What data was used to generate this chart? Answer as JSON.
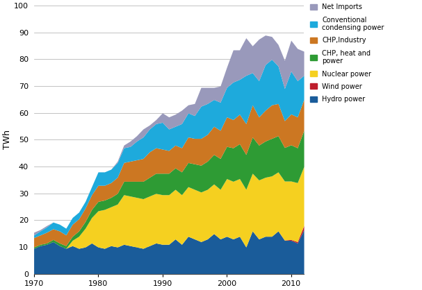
{
  "ylabel": "TWh",
  "xlim": [
    1970,
    2012
  ],
  "ylim": [
    0,
    100
  ],
  "yticks": [
    0,
    10,
    20,
    30,
    40,
    50,
    60,
    70,
    80,
    90,
    100
  ],
  "xticks": [
    1970,
    1980,
    1990,
    2000,
    2010
  ],
  "years": [
    1970,
    1971,
    1972,
    1973,
    1974,
    1975,
    1976,
    1977,
    1978,
    1979,
    1980,
    1981,
    1982,
    1983,
    1984,
    1985,
    1986,
    1987,
    1988,
    1989,
    1990,
    1991,
    1992,
    1993,
    1994,
    1995,
    1996,
    1997,
    1998,
    1999,
    2000,
    2001,
    2002,
    2003,
    2004,
    2005,
    2006,
    2007,
    2008,
    2009,
    2010,
    2011,
    2012
  ],
  "hydro": [
    9.5,
    10.5,
    11.0,
    12.0,
    10.5,
    9.5,
    10.5,
    9.5,
    10.0,
    11.5,
    10.0,
    9.5,
    10.5,
    10.0,
    11.0,
    10.5,
    10.0,
    9.5,
    10.5,
    11.5,
    11.0,
    11.0,
    13.0,
    11.0,
    14.0,
    13.0,
    12.0,
    13.0,
    15.0,
    13.0,
    14.0,
    13.0,
    14.0,
    10.0,
    16.0,
    13.0,
    14.0,
    14.0,
    16.0,
    12.5,
    12.5,
    11.5,
    16.5
  ],
  "wind": [
    0.0,
    0.0,
    0.0,
    0.0,
    0.0,
    0.0,
    0.0,
    0.0,
    0.0,
    0.0,
    0.0,
    0.0,
    0.0,
    0.0,
    0.0,
    0.0,
    0.0,
    0.0,
    0.0,
    0.0,
    0.0,
    0.0,
    0.0,
    0.0,
    0.0,
    0.0,
    0.0,
    0.0,
    0.0,
    0.0,
    0.0,
    0.0,
    0.0,
    0.0,
    0.0,
    0.0,
    0.0,
    0.0,
    0.0,
    0.1,
    0.3,
    0.5,
    1.5
  ],
  "nuclear": [
    0.0,
    0.0,
    0.0,
    0.0,
    0.0,
    0.0,
    2.0,
    4.5,
    7.0,
    9.5,
    13.5,
    14.5,
    14.5,
    16.0,
    18.5,
    18.5,
    18.5,
    18.5,
    18.5,
    18.5,
    18.5,
    18.5,
    18.5,
    18.5,
    18.5,
    18.5,
    18.5,
    18.5,
    18.5,
    18.5,
    21.5,
    21.5,
    21.5,
    21.5,
    21.5,
    22.0,
    22.0,
    22.5,
    22.0,
    22.0,
    21.8,
    22.0,
    22.0
  ],
  "chp_heat": [
    0.5,
    0.5,
    0.5,
    0.8,
    1.0,
    1.0,
    1.5,
    2.0,
    2.5,
    3.0,
    3.5,
    3.5,
    3.5,
    4.0,
    5.0,
    5.5,
    6.0,
    6.5,
    7.0,
    7.5,
    8.0,
    8.0,
    8.0,
    8.5,
    9.0,
    9.5,
    10.0,
    10.5,
    11.0,
    11.5,
    12.0,
    12.5,
    13.0,
    13.0,
    13.5,
    13.0,
    13.5,
    14.0,
    13.5,
    12.5,
    13.5,
    13.0,
    13.5
  ],
  "chp_industry": [
    3.5,
    3.5,
    4.0,
    4.0,
    4.5,
    4.0,
    4.5,
    4.5,
    5.0,
    5.5,
    6.0,
    5.5,
    5.5,
    6.0,
    7.0,
    7.5,
    8.0,
    8.5,
    9.5,
    9.5,
    9.0,
    8.5,
    8.5,
    9.0,
    9.5,
    9.5,
    10.0,
    10.0,
    10.5,
    10.5,
    11.0,
    10.5,
    11.0,
    11.5,
    12.0,
    10.5,
    11.5,
    12.5,
    12.0,
    10.0,
    11.5,
    11.5,
    11.5
  ],
  "conventional": [
    1.0,
    1.5,
    2.0,
    2.5,
    2.5,
    2.5,
    2.5,
    2.5,
    2.5,
    3.0,
    5.0,
    5.0,
    5.0,
    5.5,
    5.5,
    5.5,
    7.0,
    8.0,
    8.5,
    9.0,
    10.0,
    8.0,
    7.0,
    9.0,
    9.0,
    8.5,
    12.0,
    11.5,
    10.0,
    10.5,
    11.0,
    14.0,
    13.0,
    18.0,
    12.0,
    13.5,
    17.0,
    17.0,
    14.0,
    12.0,
    16.0,
    13.5,
    9.0
  ],
  "net_imports": [
    1.0,
    0.5,
    0.5,
    0.0,
    0.0,
    0.0,
    0.0,
    0.0,
    0.0,
    0.0,
    0.0,
    0.0,
    0.0,
    0.5,
    1.0,
    2.0,
    2.0,
    3.0,
    1.5,
    1.5,
    3.5,
    4.5,
    4.5,
    5.0,
    3.0,
    4.5,
    7.0,
    6.0,
    4.5,
    6.0,
    7.5,
    12.0,
    11.0,
    14.0,
    10.0,
    15.5,
    11.0,
    8.5,
    8.0,
    10.5,
    11.5,
    12.0,
    9.0
  ],
  "colors": {
    "hydro": "#1A5C9A",
    "wind": "#BE1E2D",
    "nuclear": "#F5D020",
    "chp_heat": "#2E9B34",
    "chp_industry": "#CC7722",
    "conventional": "#1EAADC",
    "net_imports": "#9999BB"
  },
  "labels": {
    "hydro": "Hydro power",
    "wind": "Wind power",
    "nuclear": "Nuclear power",
    "chp_heat": "CHP, heat and\npower",
    "chp_industry": "CHP,Industry",
    "conventional": "Conventional\ncondensing power",
    "net_imports": "Net Imports"
  }
}
